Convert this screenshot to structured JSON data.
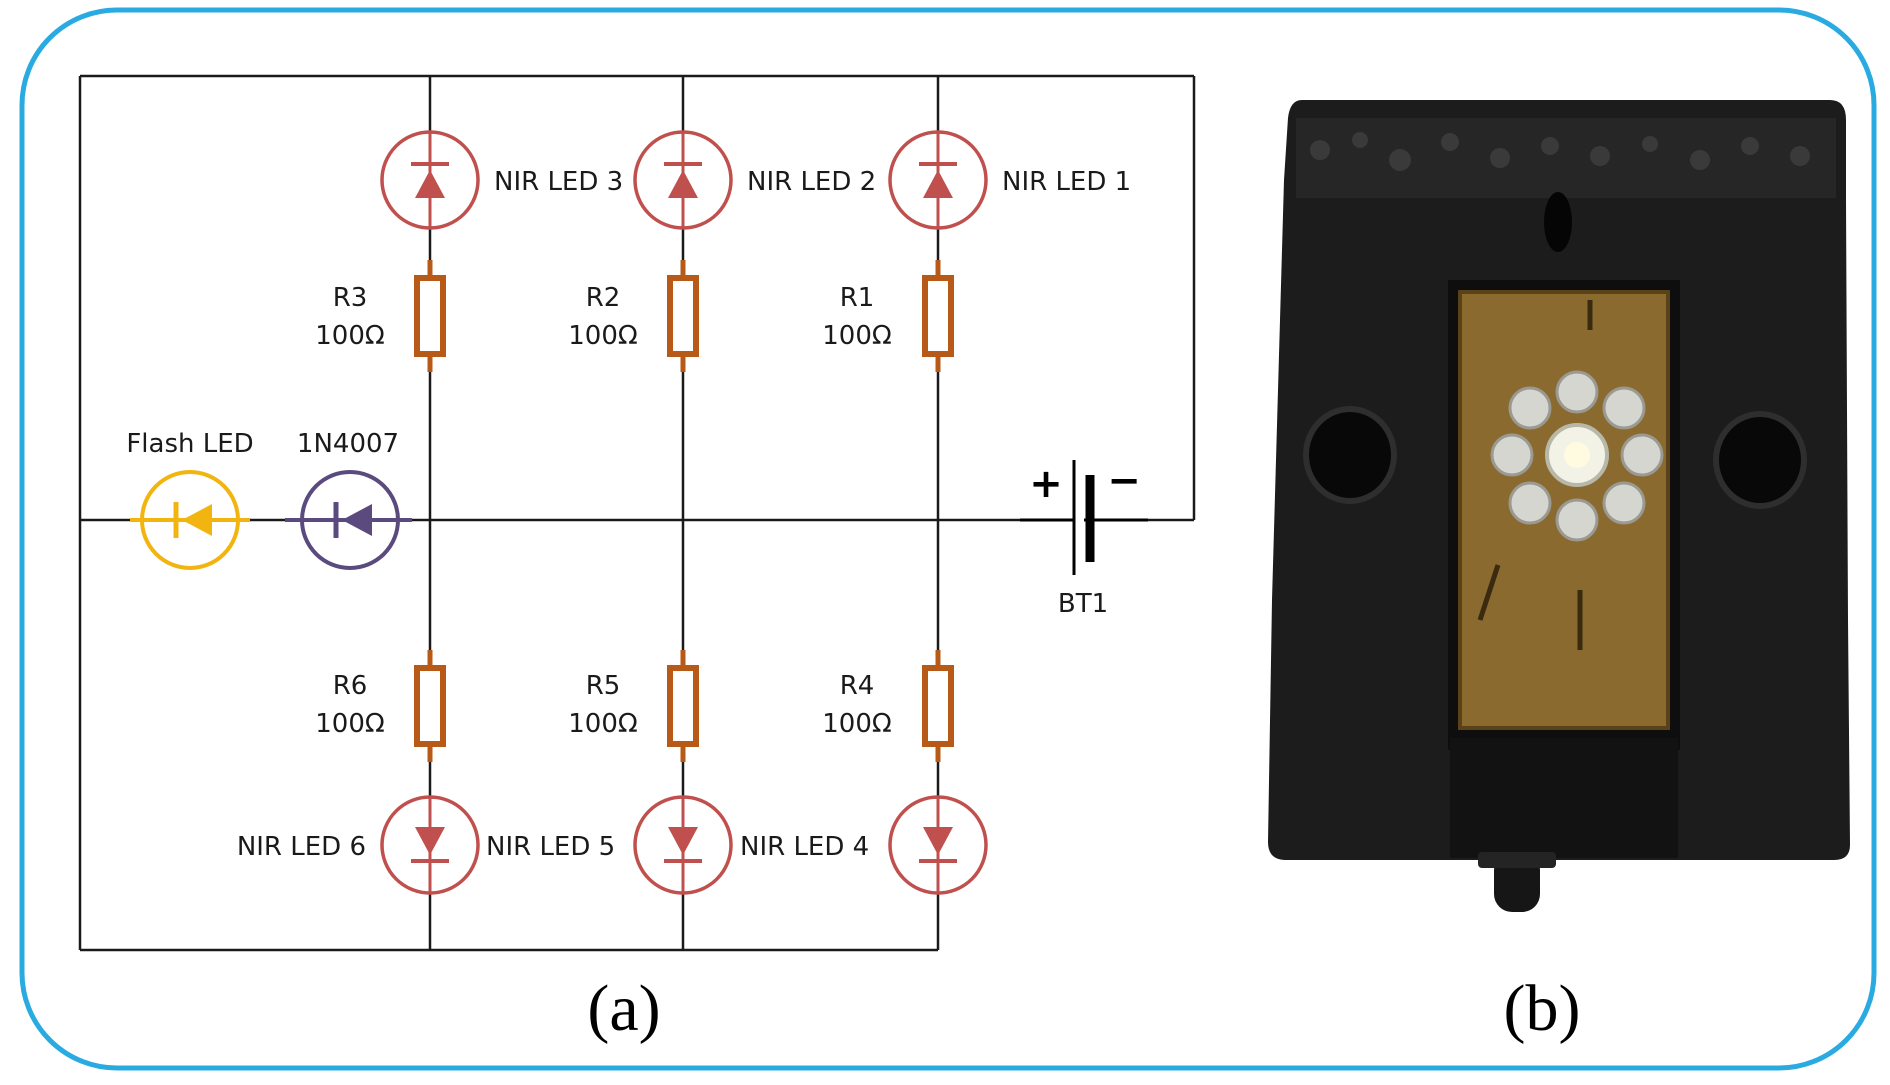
{
  "colors": {
    "frame": "#29abe2",
    "wire": "#1a1a1a",
    "nir_led": "#c0504d",
    "resistor": "#b85a17",
    "flash_led": "#f2b40f",
    "diode": "#5b4a7e",
    "housing": "#1c1c1c",
    "pcb": "#8a6a2e"
  },
  "icons": {
    "nir_led": "led-icon",
    "flash_led": "led-icon",
    "diode": "diode-icon",
    "resistor": "resistor-icon",
    "battery": "battery-icon"
  },
  "circuit": {
    "nir_leds_top": [
      "NIR LED 3",
      "NIR LED 2",
      "NIR LED 1"
    ],
    "nir_leds_bottom": [
      "NIR LED 6",
      "NIR LED 5",
      "NIR LED 4"
    ],
    "resistors_top": [
      {
        "name": "R3",
        "value": "100Ω"
      },
      {
        "name": "R2",
        "value": "100Ω"
      },
      {
        "name": "R1",
        "value": "100Ω"
      }
    ],
    "resistors_bottom": [
      {
        "name": "R6",
        "value": "100Ω"
      },
      {
        "name": "R5",
        "value": "100Ω"
      },
      {
        "name": "R4",
        "value": "100Ω"
      }
    ],
    "flash_led": "Flash LED",
    "diode": "1N4007",
    "battery": {
      "name": "BT1",
      "plus": "+",
      "minus": "−"
    }
  },
  "captions": {
    "a": "(a)",
    "b": "(b)"
  }
}
